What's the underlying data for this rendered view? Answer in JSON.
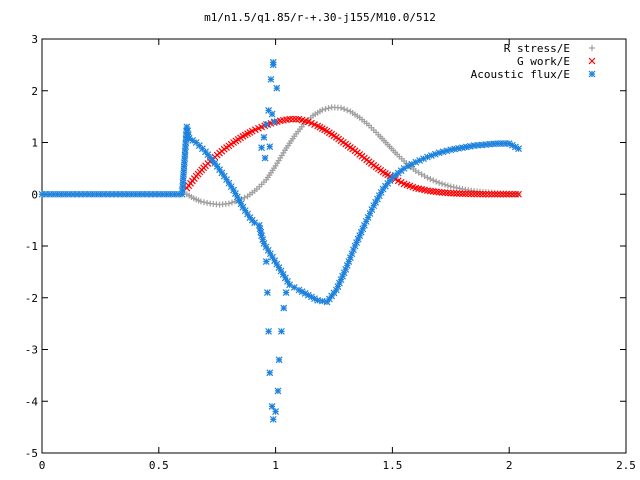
{
  "chart_data": {
    "type": "scatter",
    "title": "m1/n1.5/q1.85/r-+.30-j155/M10.0/512",
    "xlim": [
      0,
      2.5
    ],
    "ylim": [
      -5,
      3
    ],
    "x_ticks": [
      0,
      0.5,
      1,
      1.5,
      2,
      2.5
    ],
    "x_tick_labels": [
      "0",
      "0.5",
      "1",
      "1.5",
      "2",
      "2.5"
    ],
    "y_ticks": [
      3,
      2,
      1,
      0,
      -1,
      -2,
      -3,
      -4,
      -5
    ],
    "y_tick_labels": [
      "3",
      "2",
      "1",
      "0",
      "-1",
      "-2",
      "-3",
      "-4",
      "-5"
    ],
    "grid": false,
    "legend_position": "top-right",
    "series": [
      {
        "name": "R stress/E",
        "color": "#a0a0a0",
        "marker": "plus",
        "points": [
          [
            0.62,
            0.0
          ],
          [
            0.65,
            -0.08
          ],
          [
            0.68,
            -0.14
          ],
          [
            0.72,
            -0.18
          ],
          [
            0.76,
            -0.2
          ],
          [
            0.8,
            -0.18
          ],
          [
            0.84,
            -0.12
          ],
          [
            0.88,
            -0.04
          ],
          [
            0.92,
            0.1
          ],
          [
            0.96,
            0.28
          ],
          [
            1.0,
            0.55
          ],
          [
            1.04,
            0.85
          ],
          [
            1.08,
            1.12
          ],
          [
            1.12,
            1.35
          ],
          [
            1.16,
            1.52
          ],
          [
            1.2,
            1.63
          ],
          [
            1.24,
            1.68
          ],
          [
            1.28,
            1.67
          ],
          [
            1.32,
            1.6
          ],
          [
            1.36,
            1.48
          ],
          [
            1.4,
            1.33
          ],
          [
            1.44,
            1.15
          ],
          [
            1.48,
            0.96
          ],
          [
            1.52,
            0.77
          ],
          [
            1.56,
            0.6
          ],
          [
            1.6,
            0.45
          ],
          [
            1.65,
            0.32
          ],
          [
            1.7,
            0.22
          ],
          [
            1.75,
            0.15
          ],
          [
            1.8,
            0.1
          ],
          [
            1.85,
            0.06
          ],
          [
            1.9,
            0.04
          ],
          [
            1.95,
            0.02
          ],
          [
            2.0,
            0.01
          ],
          [
            2.04,
            0.0
          ]
        ]
      },
      {
        "name": "G work/E",
        "color": "#ff0000",
        "marker": "cross",
        "points": [
          [
            0.62,
            0.12
          ],
          [
            0.66,
            0.35
          ],
          [
            0.7,
            0.55
          ],
          [
            0.74,
            0.72
          ],
          [
            0.78,
            0.87
          ],
          [
            0.82,
            1.0
          ],
          [
            0.86,
            1.12
          ],
          [
            0.9,
            1.22
          ],
          [
            0.94,
            1.3
          ],
          [
            0.98,
            1.37
          ],
          [
            1.02,
            1.42
          ],
          [
            1.06,
            1.45
          ],
          [
            1.1,
            1.45
          ],
          [
            1.14,
            1.4
          ],
          [
            1.18,
            1.32
          ],
          [
            1.22,
            1.22
          ],
          [
            1.26,
            1.1
          ],
          [
            1.3,
            0.97
          ],
          [
            1.34,
            0.84
          ],
          [
            1.38,
            0.7
          ],
          [
            1.42,
            0.56
          ],
          [
            1.46,
            0.43
          ],
          [
            1.5,
            0.32
          ],
          [
            1.55,
            0.2
          ],
          [
            1.6,
            0.12
          ],
          [
            1.65,
            0.07
          ],
          [
            1.7,
            0.04
          ],
          [
            1.75,
            0.02
          ],
          [
            1.8,
            0.01
          ],
          [
            1.9,
            0.0
          ],
          [
            2.0,
            0.0
          ],
          [
            2.04,
            0.0
          ]
        ]
      },
      {
        "name": "Acoustic flux/E",
        "color": "#1e82dc",
        "marker": "star",
        "points": [
          [
            0.0,
            0.0
          ],
          [
            0.05,
            0.0
          ],
          [
            0.1,
            0.0
          ],
          [
            0.15,
            0.0
          ],
          [
            0.2,
            0.0
          ],
          [
            0.25,
            0.0
          ],
          [
            0.3,
            0.0
          ],
          [
            0.35,
            0.0
          ],
          [
            0.4,
            0.0
          ],
          [
            0.45,
            0.0
          ],
          [
            0.5,
            0.0
          ],
          [
            0.55,
            0.0
          ],
          [
            0.6,
            0.0
          ],
          [
            0.62,
            1.3
          ],
          [
            0.63,
            1.08
          ],
          [
            0.66,
            1.0
          ],
          [
            0.7,
            0.82
          ],
          [
            0.74,
            0.6
          ],
          [
            0.78,
            0.35
          ],
          [
            0.82,
            0.08
          ],
          [
            0.86,
            -0.25
          ],
          [
            0.89,
            -0.45
          ],
          [
            0.91,
            -0.55
          ],
          [
            0.93,
            -0.6
          ],
          [
            0.94,
            -0.8
          ],
          [
            0.95,
            -0.95
          ],
          [
            0.96,
            -1.3
          ],
          [
            0.965,
            -1.9
          ],
          [
            0.97,
            -2.65
          ],
          [
            0.975,
            -3.45
          ],
          [
            0.985,
            -4.1
          ],
          [
            0.99,
            -4.35
          ],
          [
            1.0,
            -4.2
          ],
          [
            1.01,
            -3.8
          ],
          [
            1.015,
            -3.2
          ],
          [
            1.025,
            -2.65
          ],
          [
            1.035,
            -2.2
          ],
          [
            1.045,
            -1.9
          ],
          [
            1.06,
            -1.75
          ],
          [
            1.08,
            -1.8
          ],
          [
            1.1,
            -1.85
          ],
          [
            1.14,
            -1.95
          ],
          [
            1.18,
            -2.05
          ],
          [
            1.22,
            -2.08
          ],
          [
            1.26,
            -1.85
          ],
          [
            1.3,
            -1.45
          ],
          [
            1.34,
            -1.0
          ],
          [
            1.38,
            -0.6
          ],
          [
            1.42,
            -0.22
          ],
          [
            1.46,
            0.1
          ],
          [
            1.5,
            0.32
          ],
          [
            1.55,
            0.5
          ],
          [
            1.6,
            0.62
          ],
          [
            1.65,
            0.72
          ],
          [
            1.7,
            0.8
          ],
          [
            1.75,
            0.86
          ],
          [
            1.8,
            0.9
          ],
          [
            1.85,
            0.94
          ],
          [
            1.9,
            0.96
          ],
          [
            1.95,
            0.98
          ],
          [
            2.0,
            0.98
          ],
          [
            2.04,
            0.88
          ],
          [
            0.99,
            2.55
          ],
          [
            0.98,
            2.22
          ],
          [
            0.97,
            1.62
          ],
          [
            0.985,
            1.55
          ],
          [
            0.96,
            1.35
          ],
          [
            0.95,
            1.1
          ],
          [
            0.94,
            0.9
          ],
          [
            0.955,
            0.7
          ],
          [
            0.975,
            0.92
          ],
          [
            0.995,
            1.4
          ],
          [
            1.005,
            2.05
          ],
          [
            0.99,
            2.5
          ]
        ]
      }
    ]
  }
}
